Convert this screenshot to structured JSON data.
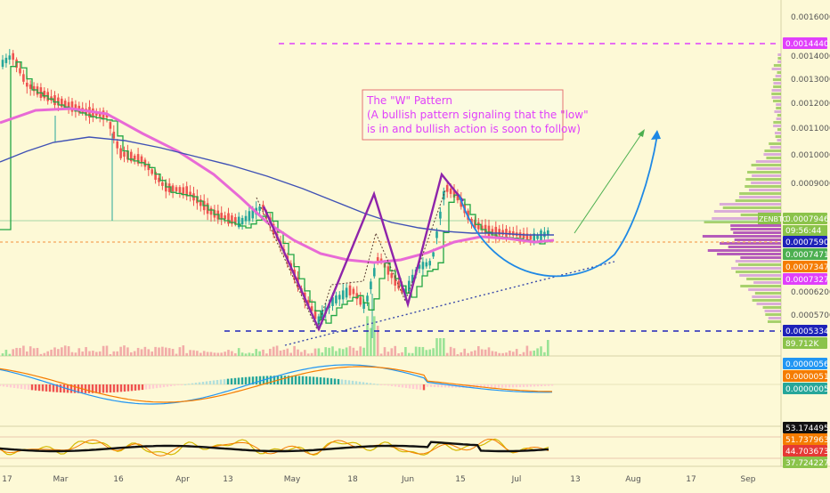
{
  "annotation": {
    "line1": "The \"W\" Pattern",
    "line2": "(A bullish pattern signaling that the \"low\"",
    "line3": "is in and bullish action is soon to follow)"
  },
  "price_axis": {
    "ticks": [
      "0.0016000",
      "0.0014000",
      "0.0013000",
      "0.0012000",
      "0.0011000",
      "0.0010000",
      "0.0009000",
      "0.0006200",
      "0.0005700"
    ],
    "ticker": "ZENBTC",
    "countdown": "09:56:44",
    "badges": [
      {
        "label": "0.0014440",
        "color": "#e040fb"
      },
      {
        "label": "0.0007946",
        "color": "#8bc34a"
      },
      {
        "label": "0.0007590",
        "color": "#1e22b8"
      },
      {
        "label": "0.0007471",
        "color": "#4caf50"
      },
      {
        "label": "0.0007347",
        "color": "#f57c00"
      },
      {
        "label": "0.0007327",
        "color": "#e040fb"
      },
      {
        "label": "0.0005334",
        "color": "#1e22b8"
      }
    ],
    "volume_badge": "89.712K"
  },
  "macd_axis": {
    "badges": [
      {
        "label": "0.0000056",
        "color": "#2196f3"
      },
      {
        "label": "0.0000051",
        "color": "#f57c00"
      },
      {
        "label": "0.0000005",
        "color": "#26a69a"
      }
    ]
  },
  "rsi_axis": {
    "badges": [
      {
        "label": "53.1744952",
        "color": "#111111"
      },
      {
        "label": "51.7379639",
        "color": "#f57c00"
      },
      {
        "label": "44.7036739",
        "color": "#e53935"
      },
      {
        "label": "37.7242272",
        "color": "#8bc34a"
      }
    ]
  },
  "time_axis": {
    "ticks": [
      "17",
      "Mar",
      "16",
      "Apr",
      "13",
      "May",
      "18",
      "Jun",
      "15",
      "Jul",
      "13",
      "Aug",
      "17",
      "Sep"
    ]
  },
  "colors": {
    "background": "#fdf9d6",
    "up": "#26a69a",
    "down": "#ef5350",
    "ma_pink": "#e86ad6",
    "ma_blue": "#3f51b5",
    "w_pattern": "#8e24aa",
    "projection": "#1e88e5",
    "trend_green": "#4caf50",
    "target_line": "#e040fb",
    "support_line": "#1e22b8"
  },
  "chart_data": {
    "type": "candlestick",
    "symbol": "ZENBTC",
    "y_unit": "BTC",
    "price": {
      "x": [
        "Feb-17",
        "Feb-24",
        "Mar-02",
        "Mar-09",
        "Mar-16",
        "Mar-23",
        "Mar-30",
        "Apr-06",
        "Apr-13",
        "Apr-20",
        "Apr-27",
        "May-04",
        "May-11",
        "May-18",
        "May-25",
        "Jun-01",
        "Jun-08",
        "Jun-15",
        "Jun-22",
        "Jun-29",
        "Jul-06",
        "Jul-09"
      ],
      "close": [
        0.00126,
        0.00116,
        0.00112,
        0.00108,
        0.00099,
        0.0009,
        0.00087,
        0.00083,
        0.0008,
        0.00081,
        0.0007,
        0.00057,
        0.00061,
        0.00072,
        0.00064,
        0.00062,
        0.00086,
        0.00079,
        0.00076,
        0.00075,
        0.00075,
        0.00079
      ],
      "last": 0.0007946
    },
    "levels": {
      "target": 0.001444,
      "support": 0.0005334,
      "current": 0.0007946,
      "ma_blue": 0.000759,
      "ma_green": 0.0007471,
      "prior_close": 0.0007347,
      "ma_pink": 0.0007327
    },
    "volume_last": "89.712K",
    "macd": {
      "macd": 5.6e-06,
      "signal": 5.1e-06,
      "histogram": 5e-07
    },
    "rsi": {
      "values": [
        53.1744952,
        51.7379639,
        44.7036739,
        37.7242272
      ]
    }
  }
}
